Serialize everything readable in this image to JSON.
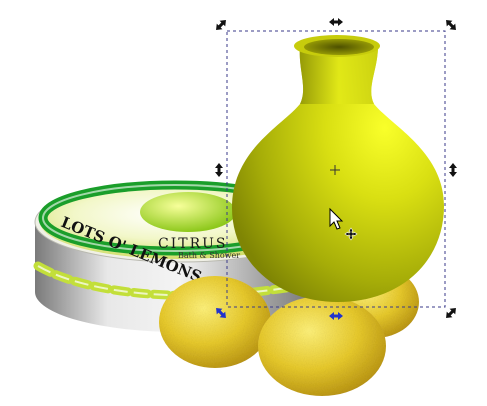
{
  "canvas": {
    "background": "#ffffff"
  },
  "tin": {
    "lid_text": "LOTS O' LEMONS",
    "label_text": "CITRUS",
    "sub_text": "Bath & Shower",
    "accent_color": "#1a9e2a",
    "label_color": "#d8f03a"
  },
  "vase": {
    "color": "#d9df12"
  },
  "lemons": {
    "color": "#e2c424",
    "count": 4
  },
  "selection": {
    "state": "selected",
    "handle_mode": "scale",
    "handle_color": "#111111",
    "active_handle_color": "#2233cc",
    "cursor": "pointer-arrow-icon",
    "move_indicator": "move-cross-icon"
  }
}
